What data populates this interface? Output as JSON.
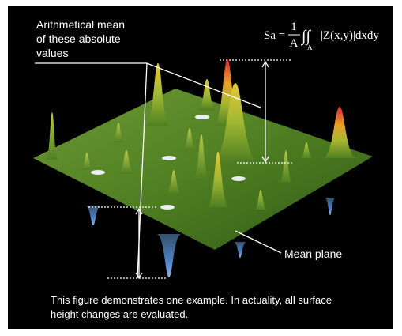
{
  "annotation": {
    "lines": [
      "Arithmetical mean",
      "of these absolute",
      "values"
    ]
  },
  "formula": {
    "lhs": "Sa =",
    "numerator": "1",
    "denominator": "A",
    "integral": "∫∫",
    "domain": "A",
    "integrand": "|Z(x,y)|dxdy"
  },
  "mean_plane_label": "Mean plane",
  "caption": {
    "lines": [
      "This figure demonstrates one example. In actuality, all surface",
      "height changes are evaluated."
    ]
  }
}
